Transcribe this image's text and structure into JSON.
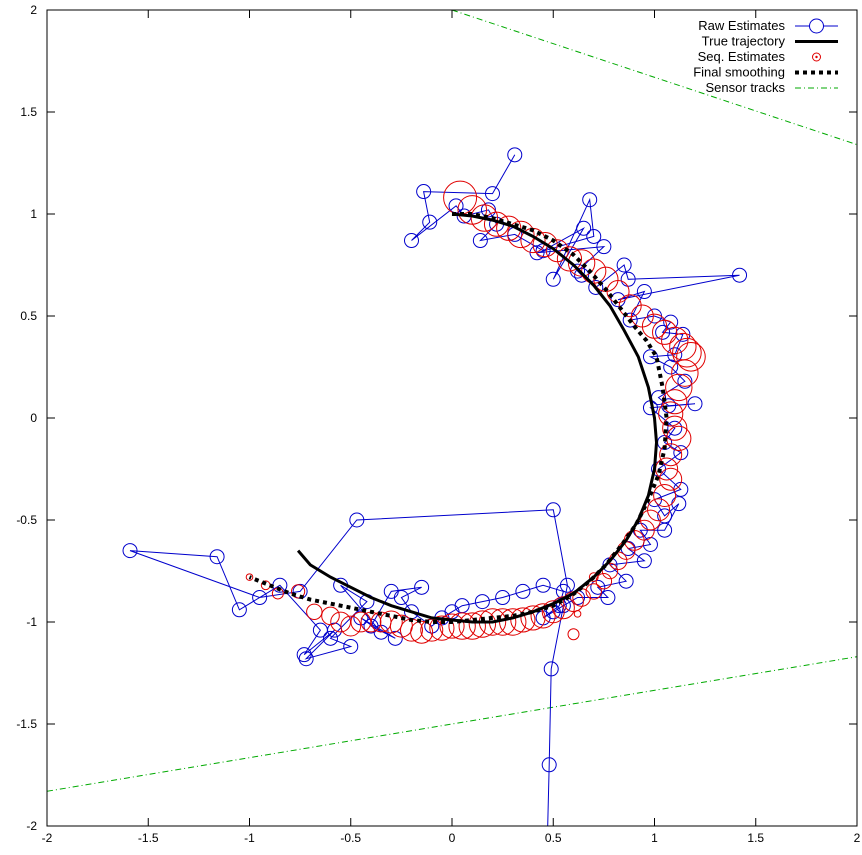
{
  "chart_data": {
    "type": "line",
    "title": "",
    "xlabel": "",
    "ylabel": "",
    "xlim": [
      -2,
      2
    ],
    "ylim": [
      -2,
      2
    ],
    "xticks": [
      -2,
      -1.5,
      -1,
      -0.5,
      0,
      0.5,
      1,
      1.5,
      2
    ],
    "yticks": [
      -2,
      -1.5,
      -1,
      -0.5,
      0,
      0.5,
      1,
      1.5,
      2
    ],
    "xtick_labels": [
      "-2",
      "-1.5",
      "-1",
      "-0.5",
      "0",
      "0.5",
      "1",
      "1.5",
      "2"
    ],
    "ytick_labels": [
      "-2",
      "-1.5",
      "-1",
      "-0.5",
      "0",
      "0.5",
      "1",
      "1.5",
      "2"
    ],
    "grid": false,
    "legend_position": "top-right",
    "colors": {
      "raw": "#0000cc",
      "true": "#000000",
      "seq": "#e00000",
      "smooth": "#000000",
      "sensor": "#00aa00"
    },
    "series": [
      {
        "name": "Raw Estimates",
        "style": "line-circle",
        "x": [
          0.31,
          0.2,
          -0.14,
          -0.11,
          -0.2,
          0.02,
          0.06,
          0.18,
          0.22,
          0.14,
          0.31,
          0.45,
          0.65,
          0.5,
          0.68,
          0.7,
          0.42,
          0.75,
          0.62,
          0.64,
          0.71,
          0.85,
          0.87,
          1.42,
          0.82,
          0.95,
          0.88,
          1.0,
          1.08,
          1.04,
          1.14,
          1.1,
          0.98,
          1.08,
          1.15,
          1.02,
          1.07,
          1.2,
          0.98,
          1.1,
          1.05,
          1.13,
          1.02,
          1.13,
          1.0,
          1.05,
          1.12,
          1.05,
          0.93,
          0.98,
          0.87,
          0.95,
          0.78,
          0.86,
          0.72,
          0.77,
          0.62,
          0.55,
          0.5,
          0.45,
          0.53,
          0.55,
          0.45,
          0.35,
          0.25,
          0.15,
          0.05,
          0.0,
          -0.05,
          -0.1,
          -0.2,
          -0.25,
          -0.15,
          -0.3,
          -0.4,
          -0.28,
          -0.45,
          -0.35,
          -0.55,
          -0.42,
          -0.6,
          -0.5,
          -0.72,
          -0.58,
          -0.73,
          -0.65,
          -0.85,
          -1.05,
          -1.16,
          -1.59,
          -0.95,
          -0.75,
          -0.47,
          0.5,
          0.57,
          0.49,
          0.48,
          0.47
        ],
        "y": [
          1.29,
          1.1,
          1.11,
          0.96,
          0.87,
          1.04,
          0.99,
          1.02,
          0.95,
          0.87,
          0.9,
          0.82,
          0.93,
          0.68,
          1.07,
          0.89,
          0.81,
          0.84,
          0.72,
          0.7,
          0.64,
          0.75,
          0.68,
          0.7,
          0.58,
          0.62,
          0.48,
          0.5,
          0.47,
          0.42,
          0.41,
          0.31,
          0.3,
          0.25,
          0.18,
          0.1,
          0.06,
          0.07,
          0.05,
          -0.05,
          -0.12,
          -0.17,
          -0.25,
          -0.35,
          -0.4,
          -0.48,
          -0.42,
          -0.55,
          -0.55,
          -0.62,
          -0.64,
          -0.7,
          -0.72,
          -0.8,
          -0.83,
          -0.88,
          -0.88,
          -0.92,
          -0.95,
          -0.98,
          -0.92,
          -0.85,
          -0.82,
          -0.85,
          -0.88,
          -0.9,
          -0.92,
          -0.95,
          -0.98,
          -1.02,
          -0.95,
          -0.88,
          -0.83,
          -0.85,
          -1.02,
          -1.08,
          -0.98,
          -1.05,
          -0.82,
          -0.9,
          -1.08,
          -1.12,
          -1.18,
          -1.04,
          -1.16,
          -1.04,
          -0.82,
          -0.94,
          -0.68,
          -0.65,
          -0.88,
          -0.85,
          -0.5,
          -0.45,
          -0.82,
          -1.23,
          -1.7,
          -2.1
        ],
        "size": [
          1.0,
          1.0,
          1.0,
          1.0,
          1.0,
          1.0,
          1.0,
          1.0,
          1.0,
          1.0,
          1.0,
          1.0,
          1.0,
          1.0,
          1.0,
          1.0,
          1.0,
          1.0,
          1.0,
          1.0,
          1.0,
          1.0,
          1.0,
          1.0,
          1.0,
          1.0,
          1.0,
          1.0,
          1.0,
          1.0,
          1.0,
          1.0,
          1.0,
          1.0,
          1.0,
          1.0,
          1.0,
          1.0,
          1.0,
          1.0,
          1.0,
          1.0,
          1.0,
          1.0,
          1.0,
          1.0,
          1.0,
          1.0,
          1.0,
          1.0,
          1.0,
          1.0,
          1.0,
          1.0,
          1.0,
          1.0,
          1.0,
          1.0,
          1.0,
          1.0,
          1.0,
          1.0,
          1.0,
          1.0,
          1.0,
          1.0,
          1.0,
          1.0,
          1.0,
          1.0,
          1.0,
          1.0,
          1.0,
          1.0,
          1.0,
          1.0,
          1.0,
          1.0,
          1.0,
          1.0,
          1.0,
          1.0,
          1.0,
          1.0,
          1.0,
          1.0,
          1.0,
          1.0,
          1.0,
          1.0,
          1.0,
          1.0,
          1.0,
          1.0,
          1.0,
          1.0,
          1.0,
          1.0
        ]
      },
      {
        "name": "True trajectory",
        "style": "solid",
        "x": [
          0.0,
          0.1,
          0.2,
          0.3,
          0.4,
          0.5,
          0.6,
          0.7,
          0.78,
          0.85,
          0.92,
          0.97,
          1.0,
          1.01,
          1.0,
          0.97,
          0.92,
          0.86,
          0.78,
          0.7,
          0.6,
          0.5,
          0.4,
          0.3,
          0.2,
          0.1,
          0.0,
          -0.1,
          -0.2,
          -0.3,
          -0.4,
          -0.5,
          -0.6,
          -0.7,
          -0.76
        ],
        "y": [
          1.0,
          0.99,
          0.97,
          0.94,
          0.89,
          0.83,
          0.75,
          0.65,
          0.55,
          0.43,
          0.3,
          0.15,
          0.0,
          -0.12,
          -0.25,
          -0.38,
          -0.5,
          -0.6,
          -0.7,
          -0.78,
          -0.86,
          -0.91,
          -0.95,
          -0.98,
          -1.0,
          -1.0,
          -0.99,
          -0.98,
          -0.95,
          -0.92,
          -0.88,
          -0.83,
          -0.78,
          -0.72,
          -0.65
        ]
      },
      {
        "name": "Seq. Estimates",
        "style": "circle",
        "x": [
          0.04,
          0.1,
          0.16,
          0.22,
          0.28,
          0.34,
          0.4,
          0.46,
          0.52,
          0.58,
          0.64,
          0.7,
          0.76,
          0.82,
          0.88,
          0.94,
          1.0,
          1.05,
          1.1,
          1.14,
          1.16,
          1.18,
          1.15,
          1.12,
          1.1,
          1.08,
          1.1,
          1.12,
          1.08,
          1.06,
          1.08,
          1.05,
          1.02,
          0.98,
          0.95,
          0.9,
          0.86,
          0.82,
          0.78,
          0.75,
          0.7,
          0.64,
          0.6,
          0.55,
          0.5,
          0.45,
          0.4,
          0.35,
          0.3,
          0.25,
          0.2,
          0.15,
          0.1,
          0.05,
          0.0,
          -0.05,
          -0.1,
          -0.15,
          -0.2,
          -0.25,
          -0.3,
          -0.35,
          -0.4,
          -0.45,
          -0.5,
          -0.55,
          -0.6,
          -0.68,
          -0.76,
          -0.86,
          -0.92,
          -1.0,
          0.6,
          0.62,
          0.7
        ],
        "y": [
          1.08,
          1.02,
          0.98,
          0.95,
          0.93,
          0.9,
          0.87,
          0.85,
          0.82,
          0.78,
          0.76,
          0.72,
          0.68,
          0.62,
          0.55,
          0.5,
          0.45,
          0.42,
          0.38,
          0.35,
          0.32,
          0.3,
          0.22,
          0.15,
          0.08,
          0.02,
          -0.05,
          -0.1,
          -0.18,
          -0.25,
          -0.3,
          -0.38,
          -0.45,
          -0.5,
          -0.55,
          -0.6,
          -0.65,
          -0.7,
          -0.75,
          -0.8,
          -0.85,
          -0.88,
          -0.9,
          -0.93,
          -0.95,
          -0.97,
          -0.98,
          -0.99,
          -1.0,
          -1.0,
          -1.0,
          -1.01,
          -1.02,
          -1.02,
          -1.02,
          -1.03,
          -1.04,
          -1.05,
          -1.04,
          -1.02,
          -1.0,
          -1.0,
          -1.0,
          -1.0,
          -1.02,
          -1.0,
          -0.97,
          -0.95,
          -0.85,
          -0.86,
          -0.82,
          -0.78,
          -1.06,
          -0.96,
          -0.78
        ],
        "size": [
          1.5,
          1.3,
          1.2,
          1.1,
          1.1,
          1.2,
          1.1,
          1.1,
          1.0,
          1.1,
          1.2,
          1.1,
          1.1,
          1.0,
          1.0,
          1.0,
          1.1,
          1.1,
          1.2,
          1.2,
          1.3,
          1.3,
          1.2,
          1.2,
          1.1,
          1.1,
          1.1,
          1.1,
          1.0,
          1.0,
          1.0,
          1.0,
          1.0,
          0.9,
          0.9,
          0.9,
          0.8,
          0.8,
          0.7,
          0.7,
          0.7,
          0.8,
          0.9,
          1.0,
          1.0,
          1.1,
          1.1,
          1.1,
          1.2,
          1.2,
          1.2,
          1.2,
          1.2,
          1.2,
          1.1,
          1.1,
          1.0,
          1.0,
          1.0,
          1.0,
          1.0,
          0.9,
          0.9,
          0.9,
          0.9,
          0.9,
          0.8,
          0.7,
          0.6,
          0.5,
          0.4,
          0.3,
          0.5,
          0.3,
          0.4
        ]
      },
      {
        "name": "Final smoothing",
        "style": "dotted",
        "x": [
          0.0,
          0.1,
          0.2,
          0.3,
          0.4,
          0.5,
          0.6,
          0.68,
          0.76,
          0.83,
          0.9,
          0.96,
          1.01,
          1.04,
          1.06,
          1.05,
          1.02,
          0.97,
          0.91,
          0.84,
          0.76,
          0.68,
          0.59,
          0.5,
          0.4,
          0.3,
          0.2,
          0.1,
          0.0,
          -0.1,
          -0.2,
          -0.3,
          -0.4,
          -0.5,
          -0.6,
          -0.7,
          -0.8,
          -0.9,
          -1.0
        ],
        "y": [
          1.0,
          1.0,
          0.98,
          0.95,
          0.92,
          0.87,
          0.8,
          0.72,
          0.63,
          0.54,
          0.45,
          0.38,
          0.3,
          0.15,
          0.0,
          -0.15,
          -0.28,
          -0.4,
          -0.52,
          -0.62,
          -0.72,
          -0.8,
          -0.87,
          -0.92,
          -0.95,
          -0.97,
          -0.98,
          -0.99,
          -1.0,
          -1.0,
          -0.99,
          -0.97,
          -0.95,
          -0.93,
          -0.91,
          -0.89,
          -0.86,
          -0.82,
          -0.78
        ]
      },
      {
        "name": "Sensor tracks",
        "style": "dash-dot",
        "segments": [
          {
            "x": [
              0.0,
              2.0
            ],
            "y": [
              2.0,
              1.34
            ]
          },
          {
            "x": [
              -2.0,
              2.0
            ],
            "y": [
              -1.83,
              -1.17
            ]
          }
        ]
      }
    ]
  }
}
